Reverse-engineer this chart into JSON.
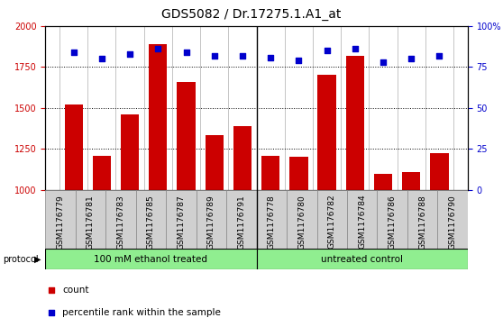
{
  "title": "GDS5082 / Dr.17275.1.A1_at",
  "samples": [
    "GSM1176779",
    "GSM1176781",
    "GSM1176783",
    "GSM1176785",
    "GSM1176787",
    "GSM1176789",
    "GSM1176791",
    "GSM1176778",
    "GSM1176780",
    "GSM1176782",
    "GSM1176784",
    "GSM1176786",
    "GSM1176788",
    "GSM1176790"
  ],
  "counts": [
    1520,
    1205,
    1462,
    1890,
    1660,
    1335,
    1390,
    1205,
    1200,
    1705,
    1820,
    1095,
    1110,
    1225
  ],
  "percentiles": [
    84,
    80,
    83,
    86,
    84,
    82,
    82,
    81,
    79,
    85,
    86,
    78,
    80,
    82
  ],
  "group1_count": 7,
  "group2_count": 7,
  "group1_label": "100 mM ethanol treated",
  "group2_label": "untreated control",
  "group_bg_color": "#90EE90",
  "bar_color": "#CC0000",
  "dot_color": "#0000CC",
  "xtick_bg_color": "#cccccc",
  "plot_bg_color": "#ffffff",
  "ylim_left": [
    1000,
    2000
  ],
  "ylim_right": [
    0,
    100
  ],
  "yticks_left": [
    1000,
    1250,
    1500,
    1750,
    2000
  ],
  "yticks_right": [
    0,
    25,
    50,
    75,
    100
  ],
  "grid_values": [
    1250,
    1500,
    1750,
    2000
  ],
  "title_fontsize": 10,
  "tick_fontsize": 6.5,
  "bar_width": 0.65,
  "legend_count_label": "count",
  "legend_pct_label": "percentile rank within the sample",
  "protocol_label": "protocol"
}
